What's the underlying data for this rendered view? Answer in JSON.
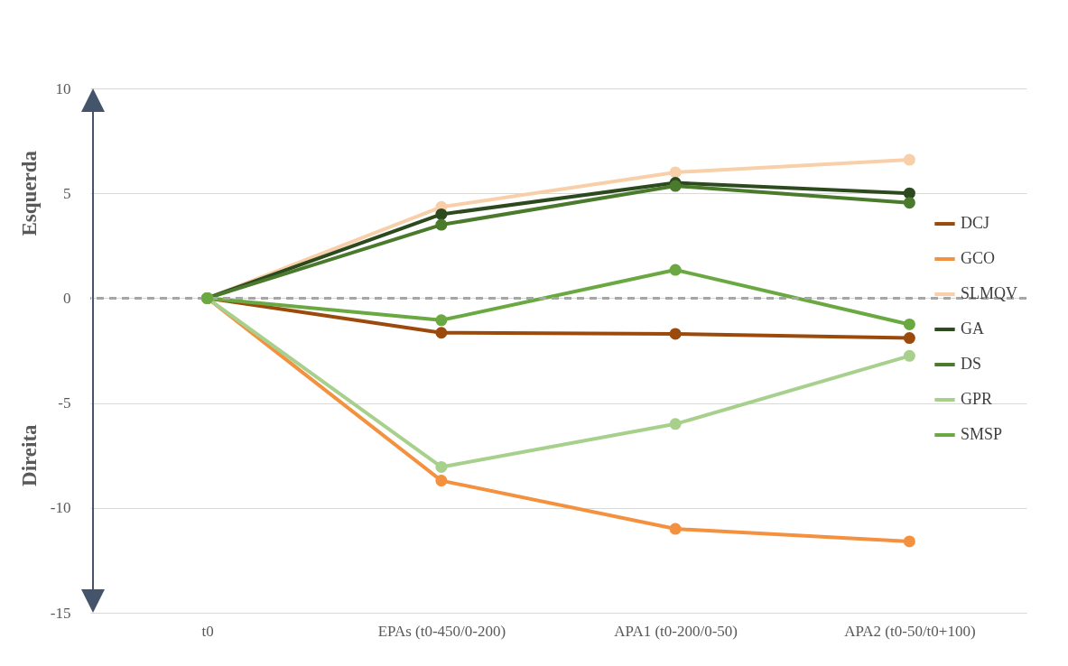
{
  "chart_data": {
    "type": "line",
    "categories": [
      "t0",
      "EPAs (t0-450/0-200)",
      "APA1 (t0-200/0-50)",
      "APA2 (t0-50/t0+100)"
    ],
    "series": [
      {
        "name": "DCJ",
        "color": "#9c4a0c",
        "values": [
          0,
          -1.65,
          -1.7,
          -1.9
        ]
      },
      {
        "name": "GCO",
        "color": "#f4913f",
        "values": [
          0,
          -8.7,
          -11.0,
          -11.6
        ]
      },
      {
        "name": "SLMQV",
        "color": "#f8cfa8",
        "values": [
          0,
          4.35,
          6.0,
          6.6
        ]
      },
      {
        "name": "GA",
        "color": "#2d4a1f",
        "values": [
          0,
          4.0,
          5.5,
          5.0
        ]
      },
      {
        "name": "DS",
        "color": "#4a7a2c",
        "values": [
          0,
          3.5,
          5.35,
          4.55
        ]
      },
      {
        "name": "GPR",
        "color": "#a8d08d",
        "values": [
          0,
          -8.05,
          -6.0,
          -2.75
        ]
      },
      {
        "name": "SMSP",
        "color": "#6aa842",
        "values": [
          0,
          -1.05,
          1.35,
          -1.25
        ]
      }
    ],
    "ylim": [
      -15,
      10
    ],
    "yticks": [
      -15,
      -10,
      -5,
      0,
      5,
      10
    ],
    "ref_lines": [
      {
        "axis": "y",
        "value": 0,
        "color": "#a6a6a6",
        "line_style": "dashed"
      }
    ],
    "annotations": [
      "Esquerda",
      "Direita"
    ],
    "grid": "y",
    "legend": "right",
    "marker": "circle",
    "line_style": "solid"
  }
}
